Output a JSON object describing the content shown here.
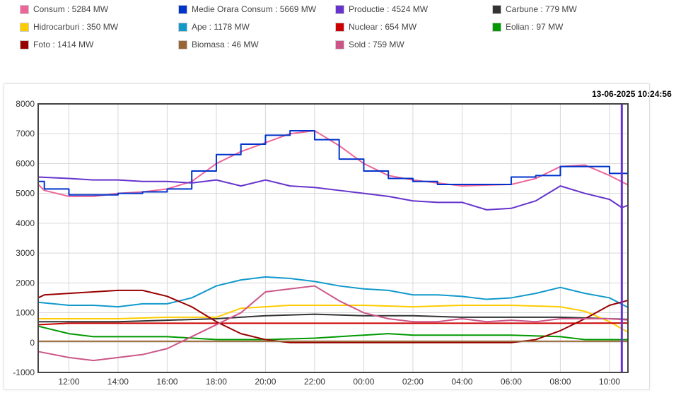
{
  "chart_data": {
    "type": "line",
    "timestamp": "13-06-2025 10:24:56",
    "ylim": [
      -1000,
      8000
    ],
    "yticks": [
      -1000,
      0,
      1000,
      2000,
      3000,
      4000,
      5000,
      6000,
      7000,
      8000
    ],
    "xlim_hours": [
      10.75,
      34.75
    ],
    "xticks": [
      {
        "h": 12,
        "label": "12:00"
      },
      {
        "h": 14,
        "label": "14:00"
      },
      {
        "h": 16,
        "label": "16:00"
      },
      {
        "h": 18,
        "label": "18:00"
      },
      {
        "h": 20,
        "label": "20:00"
      },
      {
        "h": 22,
        "label": "22:00"
      },
      {
        "h": 24,
        "label": "00:00"
      },
      {
        "h": 26,
        "label": "02:00"
      },
      {
        "h": 28,
        "label": "04:00"
      },
      {
        "h": 30,
        "label": "06:00"
      },
      {
        "h": 32,
        "label": "08:00"
      },
      {
        "h": 34,
        "label": "10:00"
      }
    ],
    "cursor_hour": 34.5,
    "cursor_color": "#6633cc",
    "grid": true,
    "legend_position": "top",
    "series": [
      {
        "name": "Consum",
        "legend": "Consum : 5284 MW",
        "color": "#ee6699",
        "x": [
          10.75,
          11,
          12,
          13,
          14,
          15,
          16,
          17,
          18,
          19,
          20,
          21,
          22,
          23,
          24,
          25,
          26,
          27,
          28,
          29,
          30,
          31,
          32,
          33,
          34,
          34.75
        ],
        "values": [
          5300,
          5100,
          4900,
          4900,
          5000,
          5050,
          5150,
          5400,
          6000,
          6400,
          6700,
          7000,
          7100,
          6600,
          6000,
          5600,
          5450,
          5350,
          5250,
          5280,
          5300,
          5500,
          5900,
          5950,
          5600,
          5284
        ]
      },
      {
        "name": "Medie Orara Consum",
        "legend": "Medie Orara Consum : 5669 MW",
        "color": "#0033cc",
        "step": true,
        "x": [
          10.75,
          11,
          12,
          13,
          14,
          15,
          16,
          17,
          18,
          19,
          20,
          21,
          22,
          23,
          24,
          25,
          26,
          27,
          28,
          29,
          30,
          31,
          32,
          33,
          34,
          34.75
        ],
        "values": [
          5400,
          5150,
          4950,
          4950,
          5000,
          5050,
          5150,
          5750,
          6300,
          6650,
          6950,
          7100,
          6800,
          6150,
          5750,
          5500,
          5400,
          5300,
          5300,
          5300,
          5550,
          5600,
          5900,
          5900,
          5669,
          5669
        ]
      },
      {
        "name": "Productie",
        "legend": "Productie : 4524 MW",
        "color": "#6633cc",
        "x": [
          10.75,
          12,
          13,
          14,
          15,
          16,
          17,
          18,
          19,
          20,
          21,
          22,
          23,
          24,
          25,
          26,
          27,
          28,
          29,
          30,
          31,
          32,
          33,
          34,
          34.5,
          34.75
        ],
        "values": [
          5550,
          5500,
          5450,
          5450,
          5400,
          5400,
          5350,
          5450,
          5250,
          5450,
          5250,
          5200,
          5100,
          5000,
          4900,
          4750,
          4700,
          4700,
          4450,
          4500,
          4750,
          5250,
          5000,
          4800,
          4524,
          4600
        ]
      },
      {
        "name": "Carbune",
        "legend": "Carbune : 779 MW",
        "color": "#333333",
        "x": [
          10.75,
          12,
          14,
          16,
          18,
          20,
          22,
          24,
          26,
          28,
          30,
          32,
          34,
          34.75
        ],
        "values": [
          700,
          700,
          700,
          750,
          800,
          900,
          950,
          900,
          900,
          850,
          850,
          850,
          800,
          779
        ]
      },
      {
        "name": "Hidrocarburi",
        "legend": "Hidrocarburi : 350 MW",
        "color": "#ffcc00",
        "x": [
          10.75,
          12,
          14,
          16,
          17,
          18,
          19,
          20,
          21,
          22,
          23,
          24,
          26,
          28,
          30,
          32,
          33,
          34,
          34.75
        ],
        "values": [
          800,
          800,
          800,
          850,
          850,
          850,
          1150,
          1200,
          1250,
          1250,
          1250,
          1250,
          1200,
          1250,
          1250,
          1200,
          1050,
          700,
          350
        ]
      },
      {
        "name": "Ape",
        "legend": "Ape : 1178 MW",
        "color": "#1199cc",
        "x": [
          10.75,
          12,
          13,
          14,
          15,
          16,
          17,
          18,
          19,
          20,
          21,
          22,
          23,
          24,
          25,
          26,
          27,
          28,
          29,
          30,
          31,
          32,
          33,
          34,
          34.75
        ],
        "values": [
          1350,
          1250,
          1250,
          1200,
          1300,
          1300,
          1500,
          1900,
          2100,
          2200,
          2150,
          2050,
          1900,
          1800,
          1750,
          1600,
          1600,
          1550,
          1450,
          1500,
          1650,
          1850,
          1650,
          1500,
          1178
        ]
      },
      {
        "name": "Nuclear",
        "legend": "Nuclear : 654 MW",
        "color": "#cc0000",
        "x": [
          10.75,
          12,
          16,
          20,
          24,
          28,
          32,
          34.75
        ],
        "values": [
          600,
          650,
          650,
          650,
          650,
          650,
          650,
          654
        ]
      },
      {
        "name": "Eolian",
        "legend": "Eolian : 97 MW",
        "color": "#009900",
        "x": [
          10.75,
          12,
          13,
          14,
          16,
          18,
          20,
          22,
          24,
          25,
          26,
          28,
          30,
          32,
          33,
          34.75
        ],
        "values": [
          550,
          300,
          200,
          200,
          200,
          100,
          100,
          150,
          250,
          300,
          250,
          250,
          250,
          200,
          100,
          97
        ]
      },
      {
        "name": "Foto",
        "legend": "Foto : 1414 MW",
        "color": "#990000",
        "x": [
          10.75,
          11,
          12,
          13,
          14,
          15,
          16,
          17,
          18,
          19,
          20,
          21,
          22,
          24,
          26,
          28,
          30,
          31,
          32,
          33,
          34,
          34.75
        ],
        "values": [
          1500,
          1600,
          1650,
          1700,
          1750,
          1750,
          1550,
          1200,
          700,
          300,
          100,
          0,
          0,
          0,
          0,
          0,
          0,
          100,
          400,
          800,
          1250,
          1414
        ]
      },
      {
        "name": "Biomasa",
        "legend": "Biomasa : 46 MW",
        "color": "#996633",
        "x": [
          10.75,
          34.75
        ],
        "values": [
          46,
          46
        ]
      },
      {
        "name": "Sold",
        "legend": "Sold : 759 MW",
        "color": "#cc5588",
        "x": [
          10.75,
          12,
          13,
          14,
          15,
          16,
          17,
          18,
          19,
          20,
          21,
          22,
          23,
          24,
          25,
          26,
          27,
          28,
          29,
          30,
          31,
          32,
          33,
          34,
          34.75
        ],
        "values": [
          -300,
          -500,
          -600,
          -500,
          -400,
          -200,
          200,
          600,
          1000,
          1700,
          1800,
          1900,
          1400,
          1000,
          800,
          700,
          700,
          800,
          700,
          750,
          700,
          800,
          800,
          800,
          759
        ]
      }
    ]
  }
}
